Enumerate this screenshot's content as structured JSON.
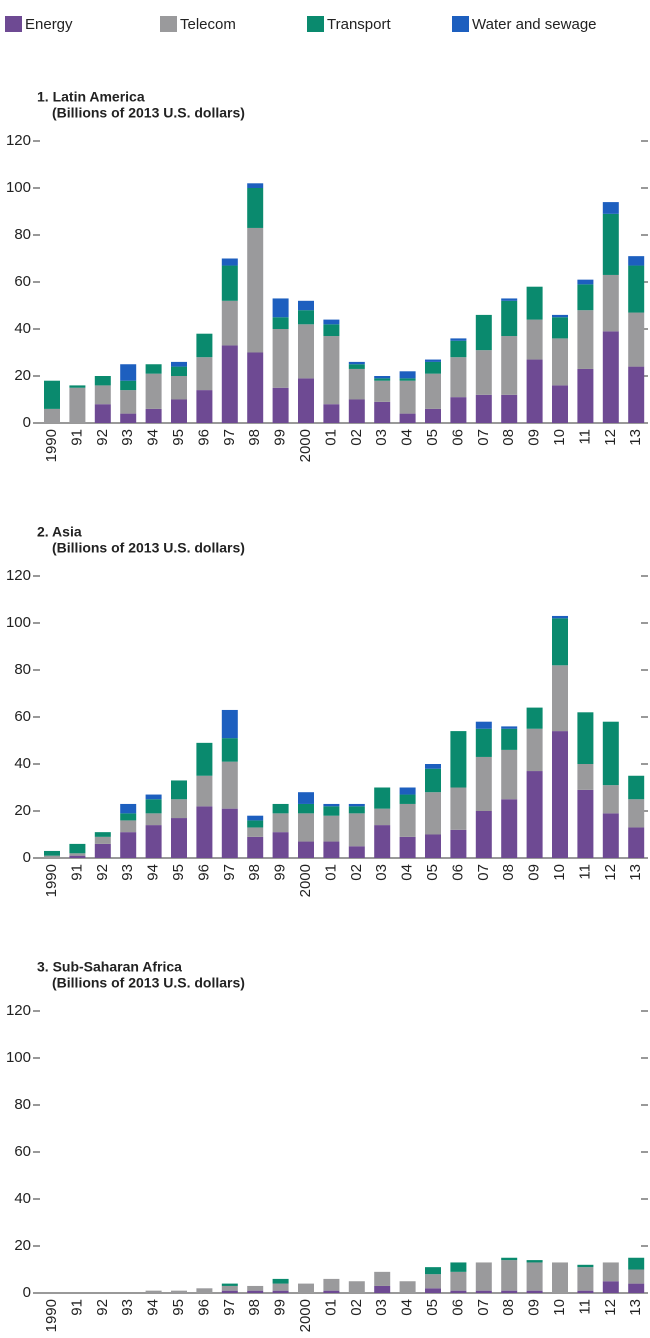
{
  "chart_data": [
    {
      "type": "bar",
      "stacked": true,
      "title": "1. Latin America",
      "subtitle": "(Billions of 2013 U.S. dollars)",
      "categories": [
        "1990",
        "91",
        "92",
        "93",
        "94",
        "95",
        "96",
        "97",
        "98",
        "99",
        "2000",
        "01",
        "02",
        "03",
        "04",
        "05",
        "06",
        "07",
        "08",
        "09",
        "10",
        "11",
        "12",
        "13"
      ],
      "series": [
        {
          "name": "Energy",
          "color": "#6e4a93",
          "values": [
            0,
            0,
            8,
            4,
            6,
            10,
            14,
            33,
            30,
            15,
            19,
            8,
            10,
            9,
            4,
            6,
            11,
            12,
            12,
            27,
            16,
            23,
            39,
            24
          ]
        },
        {
          "name": "Telecom",
          "color": "#9a9a9c",
          "values": [
            6,
            15,
            8,
            10,
            15,
            10,
            14,
            19,
            53,
            25,
            23,
            29,
            13,
            9,
            14,
            15,
            17,
            19,
            25,
            17,
            20,
            25,
            24,
            23
          ]
        },
        {
          "name": "Transport",
          "color": "#0a8a6e",
          "values": [
            12,
            1,
            4,
            4,
            4,
            4,
            10,
            15,
            17,
            5,
            6,
            5,
            2,
            1,
            1,
            5,
            7,
            15,
            15,
            14,
            9,
            11,
            26,
            20
          ]
        },
        {
          "name": "Water and sewage",
          "color": "#1d5fbf",
          "values": [
            0,
            0,
            0,
            7,
            0,
            2,
            0,
            3,
            2,
            8,
            4,
            2,
            1,
            1,
            3,
            1,
            1,
            0,
            1,
            0,
            1,
            2,
            5,
            4
          ]
        }
      ],
      "ylim": [
        0,
        120
      ],
      "yticks": [
        0,
        20,
        40,
        60,
        80,
        100,
        120
      ]
    },
    {
      "type": "bar",
      "stacked": true,
      "title": "2. Asia",
      "subtitle": "(Billions of 2013 U.S. dollars)",
      "categories": [
        "1990",
        "91",
        "92",
        "93",
        "94",
        "95",
        "96",
        "97",
        "98",
        "99",
        "2000",
        "01",
        "02",
        "03",
        "04",
        "05",
        "06",
        "07",
        "08",
        "09",
        "10",
        "11",
        "12",
        "13"
      ],
      "series": [
        {
          "color": "#6e4a93",
          "values": [
            0,
            1,
            6,
            11,
            14,
            17,
            22,
            21,
            9,
            11,
            7,
            7,
            5,
            14,
            9,
            10,
            12,
            20,
            25,
            37,
            54,
            29,
            19,
            13
          ]
        },
        {
          "color": "#9a9a9c",
          "values": [
            1,
            1,
            3,
            5,
            5,
            8,
            13,
            20,
            4,
            8,
            12,
            11,
            14,
            7,
            14,
            18,
            18,
            23,
            21,
            18,
            28,
            11,
            12,
            12
          ]
        },
        {
          "color": "#0a8a6e",
          "values": [
            2,
            4,
            2,
            3,
            6,
            8,
            14,
            10,
            3,
            4,
            4,
            4,
            3,
            9,
            4,
            10,
            24,
            12,
            9,
            9,
            20,
            22,
            27,
            10
          ]
        },
        {
          "color": "#1d5fbf",
          "values": [
            0,
            0,
            0,
            4,
            2,
            0,
            0,
            12,
            2,
            0,
            5,
            1,
            1,
            0,
            3,
            2,
            0,
            3,
            1,
            0,
            1,
            0,
            0,
            0
          ]
        }
      ],
      "ylim": [
        0,
        120
      ],
      "yticks": [
        0,
        20,
        40,
        60,
        80,
        100,
        120
      ]
    },
    {
      "type": "bar",
      "stacked": true,
      "title": "3. Sub-Saharan Africa",
      "subtitle": "(Billions of 2013 U.S. dollars)",
      "categories": [
        "1990",
        "91",
        "92",
        "93",
        "94",
        "95",
        "96",
        "97",
        "98",
        "99",
        "2000",
        "01",
        "02",
        "03",
        "04",
        "05",
        "06",
        "07",
        "08",
        "09",
        "10",
        "11",
        "12",
        "13"
      ],
      "series": [
        {
          "color": "#6e4a93",
          "values": [
            0,
            0,
            0,
            0,
            0,
            0,
            0,
            1,
            1,
            1,
            0,
            1,
            0,
            3,
            0,
            2,
            1,
            1,
            1,
            1,
            0,
            1,
            5,
            4
          ]
        },
        {
          "color": "#9a9a9c",
          "values": [
            0,
            0,
            0,
            0,
            1,
            1,
            2,
            2,
            2,
            3,
            4,
            5,
            5,
            6,
            5,
            6,
            8,
            12,
            13,
            12,
            13,
            10,
            8,
            6
          ]
        },
        {
          "color": "#0a8a6e",
          "values": [
            0,
            0,
            0,
            0,
            0,
            0,
            0,
            1,
            0,
            2,
            0,
            0,
            0,
            0,
            0,
            3,
            4,
            0,
            1,
            1,
            0,
            1,
            0,
            5
          ]
        },
        {
          "color": "#1d5fbf",
          "values": [
            0,
            0,
            0,
            0,
            0,
            0,
            0,
            0,
            0,
            0,
            0,
            0,
            0,
            0,
            0,
            0,
            0,
            0,
            0,
            0,
            0,
            0,
            0,
            0
          ]
        }
      ],
      "ylim": [
        0,
        120
      ],
      "yticks": [
        0,
        20,
        40,
        60,
        80,
        100,
        120
      ]
    }
  ]
}
